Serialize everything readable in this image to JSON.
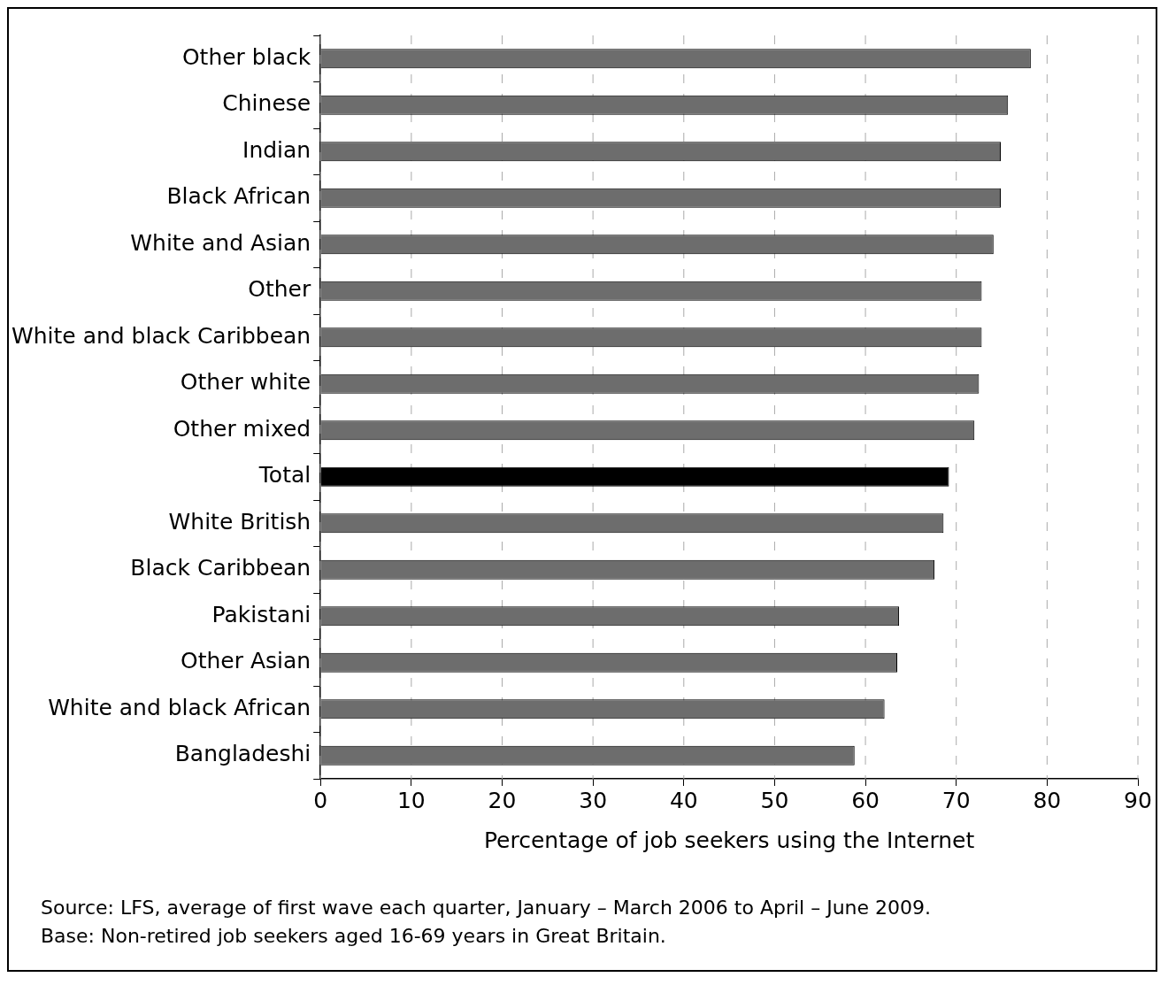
{
  "chart_data": {
    "type": "bar",
    "orientation": "horizontal",
    "xlabel": "Percentage of job seekers using the Internet",
    "categories": [
      "Other black",
      "Chinese",
      "Indian",
      "Black African",
      "White and Asian",
      "Other",
      "White and black Caribbean",
      "Other white",
      "Other mixed",
      "Total",
      "White British",
      "Black Caribbean",
      "Pakistani",
      "Other Asian",
      "White and black African",
      "Bangladeshi"
    ],
    "values": [
      78.2,
      75.7,
      74.9,
      74.9,
      74.1,
      72.8,
      72.8,
      72.5,
      72.0,
      69.2,
      68.6,
      67.6,
      63.7,
      63.5,
      62.1,
      58.8
    ],
    "colors": [
      "#6d6d6d",
      "#6d6d6d",
      "#6d6d6d",
      "#6d6d6d",
      "#6d6d6d",
      "#6d6d6d",
      "#6d6d6d",
      "#6d6d6d",
      "#6d6d6d",
      "#000000",
      "#6d6d6d",
      "#6d6d6d",
      "#6d6d6d",
      "#6d6d6d",
      "#6d6d6d",
      "#6d6d6d"
    ],
    "xlim": [
      0,
      90
    ],
    "xticks": [
      0,
      10,
      20,
      30,
      40,
      50,
      60,
      70,
      80,
      90
    ],
    "grid": "x",
    "legend": false,
    "annotations": [
      "Source: LFS, average of first wave each quarter, January – March 2006 to April – June 2009.",
      "Base: Non-retired job seekers aged 16-69 years in Great Britain."
    ]
  }
}
